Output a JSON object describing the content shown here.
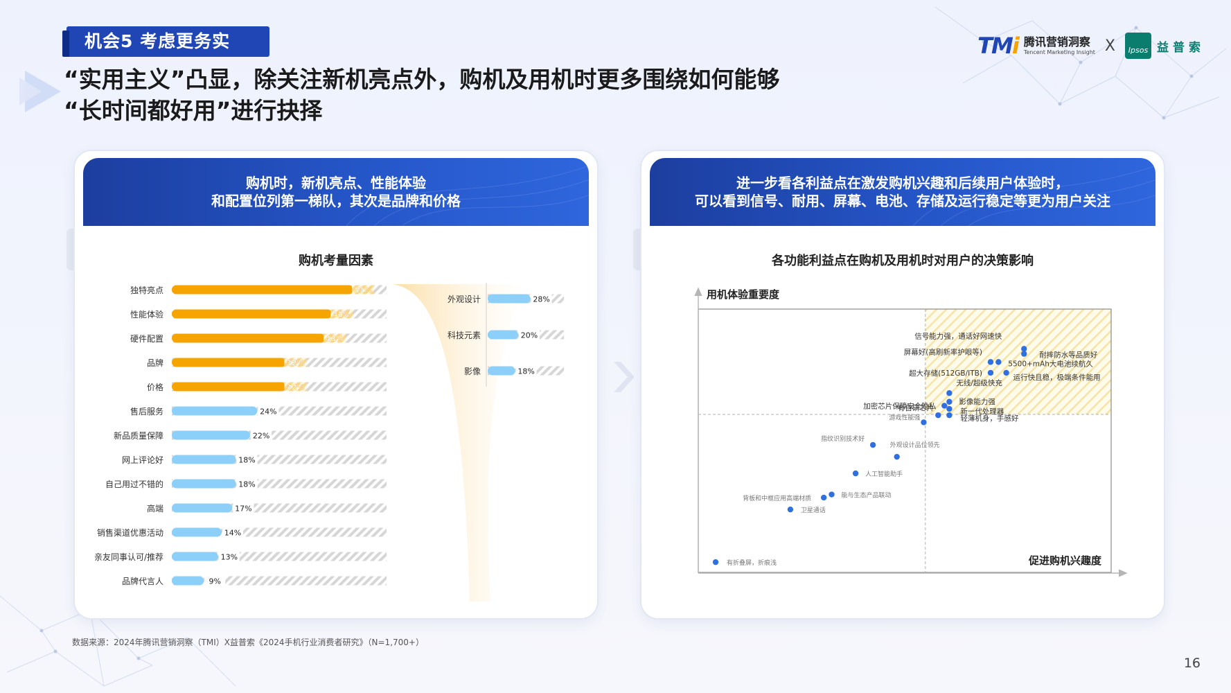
{
  "tag": "机会5  考虑更务实",
  "headline": [
    "“实用主义”凸显，除关注新机亮点外，购机及用机时更多围绕如何能够",
    "“长时间都好用”进行抉择"
  ],
  "logos": {
    "tmi_cn": "腾讯营销洞察",
    "tmi_en": "Tencent Marketing Insight",
    "x": "X",
    "ipsos_en": "Ipsos",
    "ipsos_cn": "益普索"
  },
  "left_panel": {
    "header": [
      "购机时，新机亮点、性能体验",
      "和配置位列第一梯队，其次是品牌和价格"
    ],
    "chart_title": "购机考量因素"
  },
  "right_panel": {
    "header": [
      "进一步看各利益点在激发购机兴趣和后续用户体验时，",
      "可以看到信号、耐用、屏幕、电池、存储及运行稳定等更为用户关注"
    ],
    "chart_title": "各功能利益点在购机及用机时对用户的决策影响"
  },
  "chart_data": [
    {
      "type": "bar",
      "orientation": "horizontal",
      "title": "购机考量因素",
      "categories": [
        "独特亮点",
        "性能体验",
        "硬件配置",
        "品牌",
        "价格",
        "售后服务",
        "新品质量保障",
        "网上评论好",
        "自己用过不错的",
        "高端",
        "销售渠道优惠活动",
        "亲友同事认可/推荐",
        "品牌代言人"
      ],
      "values": [
        51,
        45,
        43,
        32,
        32,
        24,
        22,
        18,
        18,
        17,
        14,
        13,
        9
      ],
      "labels": [
        "51%",
        "45%",
        "43%",
        "32%",
        "32%",
        "24%",
        "22%",
        "18%",
        "18%",
        "17%",
        "14%",
        "13%",
        "9%"
      ],
      "highlight_count": 5,
      "colors": {
        "highlight": "#f6a500",
        "normal": "#8ccff8",
        "track": "#dcdcdc"
      },
      "xlim": [
        0,
        60
      ]
    },
    {
      "type": "bar",
      "orientation": "horizontal",
      "title": "",
      "parent_category": "独特亮点",
      "categories": [
        "外观设计",
        "科技元素",
        "影像"
      ],
      "values": [
        28,
        20,
        18
      ],
      "labels": [
        "28%",
        "20%",
        "18%"
      ],
      "colors": {
        "normal": "#8ccff8",
        "track": "#dcdcdc"
      },
      "xlim": [
        0,
        60
      ]
    },
    {
      "type": "scatter",
      "title": "各功能利益点在购机及用机时对用户的决策影响",
      "xlabel": "促进购机兴趣度",
      "ylabel": "用机体验重要度",
      "xlim": [
        0,
        100
      ],
      "ylim": [
        0,
        100
      ],
      "threshold": {
        "x": 55,
        "y": 60
      },
      "highlight_quadrant": "top-right",
      "point_color": "#2f6fe0",
      "points": [
        {
          "label": "信号能力强，通话好网速快",
          "x": 78.9,
          "y": 84.9
        },
        {
          "label": "耐摔防水等品质好",
          "x": 78.9,
          "y": 83.0
        },
        {
          "label": "屏幕好(高刷新率护眼等)",
          "x": 70.8,
          "y": 79.9
        },
        {
          "label": "5500+mAh大电池续航久",
          "x": 72.7,
          "y": 79.9
        },
        {
          "label": "超大存储(512GB/ITB)",
          "x": 70.8,
          "y": 75.8
        },
        {
          "label": "运行快且稳，极端条件能用",
          "x": 74.6,
          "y": 75.8
        },
        {
          "label": "无线/超级快充",
          "x": 60.8,
          "y": 68.1
        },
        {
          "label": "影像能力强",
          "x": 60.8,
          "y": 64.8
        },
        {
          "label": "加密芯片保障安全隐私",
          "x": 59.6,
          "y": 63.3
        },
        {
          "label": "新一代处理器",
          "x": 60.8,
          "y": 62.1
        },
        {
          "label": "有自研芯片",
          "x": 58.1,
          "y": 59.7
        },
        {
          "label": "轻薄机身，手感好",
          "x": 60.8,
          "y": 59.7
        },
        {
          "label": "游戏性能强",
          "x": 54.6,
          "y": 57.0
        },
        {
          "label": "指纹识别技术好",
          "x": 42.3,
          "y": 48.4
        },
        {
          "label": "外观设计品位领先",
          "x": 48.1,
          "y": 43.9
        },
        {
          "label": "人工智能助手",
          "x": 38.1,
          "y": 37.6
        },
        {
          "label": "能与生态产品联动",
          "x": 32.3,
          "y": 29.6
        },
        {
          "label": "背板和中框应用高端材质",
          "x": 30.4,
          "y": 28.4
        },
        {
          "label": "卫星通话",
          "x": 22.3,
          "y": 23.9
        },
        {
          "label": "有折叠屏，折痕浅",
          "x": 4.2,
          "y": 3.9
        }
      ]
    }
  ],
  "source": "数据来源：2024年腾讯营销洞察（TMI）X益普索《2024手机行业消费者研究》（N=1,700+）",
  "page_number": "16"
}
